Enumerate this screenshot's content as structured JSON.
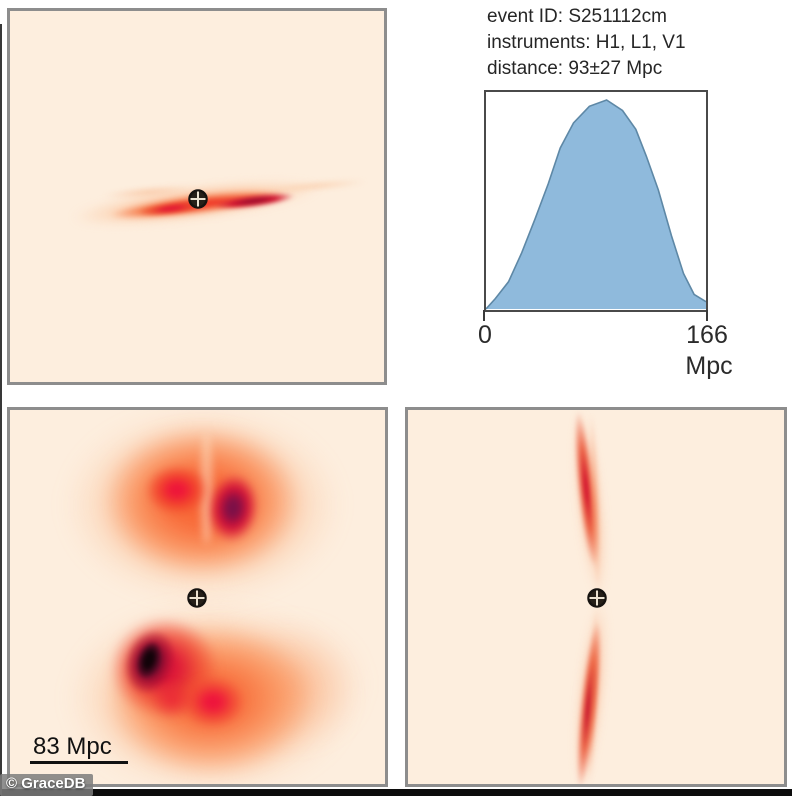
{
  "figure": {
    "watermark": "© GraceDB",
    "event_info": {
      "event_id_line": "event ID: S251112cm",
      "instruments_line": "instruments: H1, L1, V1",
      "distance_line": "distance: 93±27 Mpc"
    },
    "scale_bar_label": "83 Mpc",
    "marker_symbol": "earth-crosshair"
  },
  "chart_data": {
    "type": "area",
    "title": "",
    "xlabel": "Mpc",
    "ylabel": "",
    "xlim": [
      0,
      166
    ],
    "ylim": [
      0,
      1.05
    ],
    "x_tick_labels": [
      "0",
      "166"
    ],
    "grid": false,
    "legend": "none",
    "x": [
      0,
      7,
      17,
      27,
      37,
      47,
      56,
      66,
      78,
      91,
      103,
      113,
      121,
      130,
      140,
      149,
      157,
      166
    ],
    "y": [
      0,
      0.05,
      0.13,
      0.27,
      0.43,
      0.6,
      0.77,
      0.89,
      0.97,
      1.0,
      0.95,
      0.86,
      0.73,
      0.57,
      0.35,
      0.17,
      0.07,
      0.035
    ]
  },
  "skymap_panels": {
    "top_left": {
      "name": "sky-localization-streak-horizontal"
    },
    "bottom_left": {
      "name": "sky-localization-two-lobes"
    },
    "bottom_right": {
      "name": "sky-localization-streak-vertical"
    }
  },
  "colors": {
    "panel_background": "#fdeede",
    "panel_border": "#8d8d8d",
    "heat_orange": "#f97245",
    "heat_red": "#e8232e",
    "heat_crimson": "#dc1440",
    "heat_dark_red": "#8c0e38",
    "heat_near_black": "#1b040e",
    "posterior_fill": "#8fbadc",
    "posterior_outline": "#5e88a6",
    "text": "#262626",
    "watermark_background": "#7d7d7d",
    "bottom_bar": "#0c0c0c"
  }
}
